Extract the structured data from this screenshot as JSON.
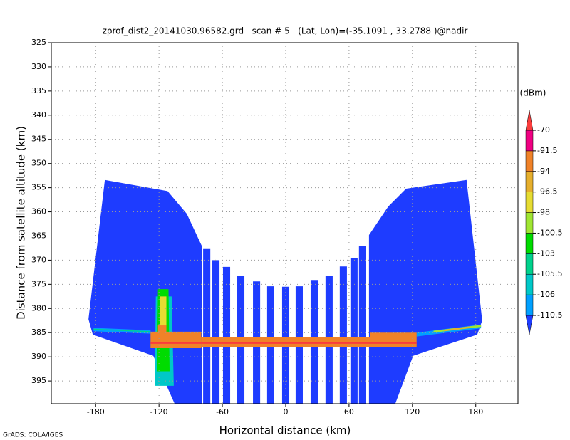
{
  "chart_data": {
    "type": "shaded",
    "title": "zprof_dist2_20141030.96582.grd   scan # 5   (Lat, Lon)=(-35.1091 , 33.2788 )@nadir",
    "x_label": "Horizontal distance (km)",
    "y_label": "Distance from satellite altitude (km)",
    "footer": "GrADS: COLA/IGES",
    "xlim": [
      -222,
      220
    ],
    "ylim": [
      325,
      399.7
    ],
    "y_reversed": true,
    "grid": true,
    "xticks": [
      -180,
      -120,
      -60,
      0,
      60,
      120,
      180
    ],
    "yticks": [
      325,
      330,
      335,
      340,
      345,
      350,
      355,
      360,
      365,
      370,
      375,
      380,
      385,
      390,
      395
    ],
    "colorbar": {
      "unit": "(dBm)",
      "levels": [
        -110.5,
        -106,
        -105.5,
        -103,
        -100.5,
        -98,
        -96.5,
        -94,
        -91.5,
        -70
      ],
      "colors": [
        "#1e3cff",
        "#00a0ff",
        "#00c8c8",
        "#00d28c",
        "#00dc00",
        "#a0e632",
        "#e6dc32",
        "#e6af2d",
        "#f08228",
        "#f00082",
        "#fa3c3c"
      ]
    },
    "regions": [
      {
        "value": -115,
        "polygon": [
          [
            -171.3,
            353.4
          ],
          [
            -111.9,
            355.7
          ],
          [
            -93.7,
            360.4
          ],
          [
            -79.6,
            367.0
          ],
          [
            -79.6,
            399.7
          ],
          [
            -105.2,
            399.7
          ],
          [
            -125.4,
            389.8
          ],
          [
            -182.7,
            385.4
          ],
          [
            -186.8,
            382.2
          ]
        ]
      },
      {
        "value": -115,
        "polygon": [
          [
            171.3,
            353.4
          ],
          [
            114.0,
            355.2
          ],
          [
            97.1,
            358.9
          ],
          [
            78.9,
            364.8
          ],
          [
            78.9,
            399.7
          ],
          [
            103.8,
            399.7
          ],
          [
            120.7,
            389.8
          ],
          [
            181.4,
            385.4
          ],
          [
            186.1,
            382.5
          ]
        ]
      },
      {
        "value": -115,
        "polygon": [
          [
            -78.2,
            367.7
          ],
          [
            -71.4,
            367.7
          ],
          [
            -71.4,
            399.7
          ],
          [
            -78.2,
            399.7
          ]
        ]
      },
      {
        "value": -115,
        "polygon": [
          [
            -69.5,
            370.0
          ],
          [
            -62.7,
            370.0
          ],
          [
            -62.7,
            399.7
          ],
          [
            -69.5,
            399.7
          ]
        ]
      },
      {
        "value": -115,
        "polygon": [
          [
            -59.4,
            371.4
          ],
          [
            -52.6,
            371.4
          ],
          [
            -52.6,
            399.7
          ],
          [
            -59.4,
            399.7
          ]
        ]
      },
      {
        "value": -115,
        "polygon": [
          [
            -45.9,
            373.2
          ],
          [
            -39.1,
            373.2
          ],
          [
            -39.1,
            399.7
          ],
          [
            -45.9,
            399.7
          ]
        ]
      },
      {
        "value": -115,
        "polygon": [
          [
            -31.0,
            374.4
          ],
          [
            -24.2,
            374.4
          ],
          [
            -24.2,
            399.7
          ],
          [
            -31.0,
            399.7
          ]
        ]
      },
      {
        "value": -115,
        "polygon": [
          [
            -17.6,
            375.4
          ],
          [
            -10.8,
            375.4
          ],
          [
            -10.8,
            399.7
          ],
          [
            -17.6,
            399.7
          ]
        ]
      },
      {
        "value": -115,
        "polygon": [
          [
            -3.4,
            375.5
          ],
          [
            3.4,
            375.5
          ],
          [
            3.4,
            399.7
          ],
          [
            -3.4,
            399.7
          ]
        ]
      },
      {
        "value": -115,
        "polygon": [
          [
            9.4,
            375.4
          ],
          [
            16.2,
            375.4
          ],
          [
            16.2,
            399.7
          ],
          [
            9.4,
            399.7
          ]
        ]
      },
      {
        "value": -115,
        "polygon": [
          [
            23.6,
            374.1
          ],
          [
            30.4,
            374.1
          ],
          [
            30.4,
            399.7
          ],
          [
            23.6,
            399.7
          ]
        ]
      },
      {
        "value": -115,
        "polygon": [
          [
            37.7,
            373.3
          ],
          [
            44.5,
            373.3
          ],
          [
            44.5,
            399.7
          ],
          [
            37.7,
            399.7
          ]
        ]
      },
      {
        "value": -115,
        "polygon": [
          [
            51.2,
            371.3
          ],
          [
            58.0,
            371.3
          ],
          [
            58.0,
            399.7
          ],
          [
            51.2,
            399.7
          ]
        ]
      },
      {
        "value": -115,
        "polygon": [
          [
            61.3,
            369.5
          ],
          [
            68.1,
            369.5
          ],
          [
            68.1,
            399.7
          ],
          [
            61.3,
            399.7
          ]
        ]
      },
      {
        "value": -115,
        "polygon": [
          [
            69.4,
            367.0
          ],
          [
            76.2,
            367.0
          ],
          [
            76.2,
            399.7
          ],
          [
            69.4,
            399.7
          ]
        ]
      },
      {
        "value": -107,
        "polygon": [
          [
            -182,
            384.0
          ],
          [
            -128,
            384.5
          ],
          [
            -128,
            385.2
          ],
          [
            -182,
            384.7
          ]
        ]
      },
      {
        "value": -104,
        "polygon": [
          [
            -182,
            384.2
          ],
          [
            -128,
            384.7
          ],
          [
            -128,
            384.9
          ],
          [
            -182,
            384.4
          ]
        ]
      },
      {
        "value": -107,
        "polygon": [
          [
            124,
            385.0
          ],
          [
            185,
            383.3
          ],
          [
            185,
            384.1
          ],
          [
            124,
            385.8
          ]
        ]
      },
      {
        "value": -99,
        "polygon": [
          [
            140,
            384.6
          ],
          [
            185,
            383.4
          ],
          [
            185,
            383.8
          ],
          [
            140,
            385.0
          ]
        ]
      },
      {
        "value": -95,
        "polygon": [
          [
            150,
            384.4
          ],
          [
            175,
            383.7
          ],
          [
            175,
            384.0
          ],
          [
            150,
            384.7
          ]
        ]
      },
      {
        "value": -106,
        "polygon": [
          [
            -123,
            377.5
          ],
          [
            -108,
            377.5
          ],
          [
            -106,
            396.0
          ],
          [
            -124,
            396.0
          ]
        ]
      },
      {
        "value": -102,
        "polygon": [
          [
            -121,
            376.0
          ],
          [
            -111,
            376.0
          ],
          [
            -110,
            393.0
          ],
          [
            -122,
            393.0
          ]
        ]
      },
      {
        "value": -97,
        "polygon": [
          [
            -119,
            377.5
          ],
          [
            -113,
            377.5
          ],
          [
            -113,
            385.0
          ],
          [
            -119,
            385.0
          ]
        ]
      },
      {
        "value": -93,
        "polygon": [
          [
            -121,
            383.5
          ],
          [
            -113,
            383.5
          ],
          [
            -113,
            386.0
          ],
          [
            -121,
            386.0
          ]
        ]
      },
      {
        "value": -92,
        "polygon": [
          [
            -128,
            384.8
          ],
          [
            -80,
            384.8
          ],
          [
            -80,
            388.2
          ],
          [
            -128,
            388.2
          ]
        ]
      },
      {
        "value": -92,
        "polygon": [
          [
            -80,
            386.0
          ],
          [
            80,
            386.0
          ],
          [
            80,
            388.0
          ],
          [
            -80,
            388.0
          ]
        ]
      },
      {
        "value": -92,
        "polygon": [
          [
            80,
            385.0
          ],
          [
            124,
            385.0
          ],
          [
            124,
            388.0
          ],
          [
            80,
            388.0
          ]
        ]
      },
      {
        "value": -65,
        "polygon": [
          [
            -128,
            386.9
          ],
          [
            124,
            386.9
          ],
          [
            124,
            387.3
          ],
          [
            -128,
            387.3
          ]
        ]
      }
    ]
  }
}
